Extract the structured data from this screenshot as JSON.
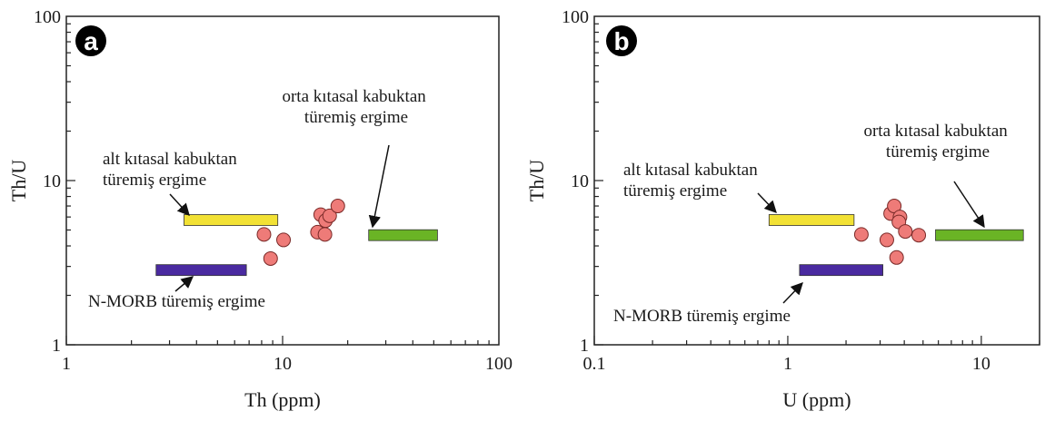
{
  "chart_data": [
    {
      "type": "scatter",
      "panel_label": "a",
      "xlabel": "Th (ppm)",
      "ylabel": "Th/U",
      "x_scale": "log",
      "y_scale": "log",
      "xlim": [
        1,
        100
      ],
      "ylim": [
        1,
        100
      ],
      "x_ticks": [
        {
          "v": 1,
          "label": "1"
        },
        {
          "v": 10,
          "label": "10"
        },
        {
          "v": 100,
          "label": "100"
        }
      ],
      "y_ticks": [
        {
          "v": 1,
          "label": "1"
        },
        {
          "v": 10,
          "label": "10"
        },
        {
          "v": 100,
          "label": "100"
        }
      ],
      "grid": false,
      "point_color": "#ee7b78",
      "points": [
        {
          "x": 8.2,
          "y": 4.7
        },
        {
          "x": 8.8,
          "y": 3.35
        },
        {
          "x": 10.1,
          "y": 4.35
        },
        {
          "x": 14.5,
          "y": 4.85
        },
        {
          "x": 15.0,
          "y": 6.2
        },
        {
          "x": 15.8,
          "y": 5.7
        },
        {
          "x": 15.7,
          "y": 4.7
        },
        {
          "x": 16.5,
          "y": 6.1
        },
        {
          "x": 18.0,
          "y": 7.0
        }
      ],
      "fields": [
        {
          "label": "alt kıtasal kabuktan türemiş ergime",
          "color": "#f2e134",
          "x0": 3.5,
          "x1": 9.5,
          "y": 5.75
        },
        {
          "label": "orta kıtasal kabuktan türemiş ergime",
          "color": "#6ab425",
          "x0": 25,
          "x1": 52,
          "y": 4.65
        },
        {
          "label": "N-MORB türemiş ergime",
          "color": "#4a2aa0",
          "x0": 2.6,
          "x1": 6.8,
          "y": 2.85
        }
      ],
      "annotations": [
        {
          "lines": [
            "orta kıtasal kabuktan",
            "türemiş ergime"
          ]
        },
        {
          "lines": [
            "alt kıtasal kabuktan",
            "türemiş ergime"
          ]
        },
        {
          "lines": [
            "N-MORB türemiş ergime"
          ]
        }
      ]
    },
    {
      "type": "scatter",
      "panel_label": "b",
      "xlabel": "U (ppm)",
      "ylabel": "Th/U",
      "x_scale": "log",
      "y_scale": "log",
      "xlim": [
        0.1,
        20
      ],
      "ylim": [
        1,
        100
      ],
      "x_ticks": [
        {
          "v": 0.1,
          "label": "0.1"
        },
        {
          "v": 1,
          "label": "1"
        },
        {
          "v": 10,
          "label": "10"
        }
      ],
      "y_ticks": [
        {
          "v": 1,
          "label": "1"
        },
        {
          "v": 10,
          "label": "10"
        },
        {
          "v": 100,
          "label": "100"
        }
      ],
      "grid": false,
      "point_color": "#ee7b78",
      "points": [
        {
          "x": 2.4,
          "y": 4.7
        },
        {
          "x": 3.25,
          "y": 4.35
        },
        {
          "x": 3.4,
          "y": 6.3
        },
        {
          "x": 3.55,
          "y": 7.0
        },
        {
          "x": 3.65,
          "y": 3.4
        },
        {
          "x": 3.8,
          "y": 6.0
        },
        {
          "x": 3.75,
          "y": 5.6
        },
        {
          "x": 4.05,
          "y": 4.9
        },
        {
          "x": 4.75,
          "y": 4.65
        }
      ],
      "fields": [
        {
          "label": "alt kıtasal kabuktan türemiş ergime",
          "color": "#f2e134",
          "x0": 0.8,
          "x1": 2.2,
          "y": 5.75
        },
        {
          "label": "orta kıtasal kabuktan türemiş ergime",
          "color": "#6ab425",
          "x0": 5.8,
          "x1": 16.5,
          "y": 4.65
        },
        {
          "label": "N-MORB türemiş ergime",
          "color": "#4a2aa0",
          "x0": 1.15,
          "x1": 3.1,
          "y": 2.85
        }
      ],
      "annotations": [
        {
          "lines": [
            "orta kıtasal kabuktan",
            "türemiş ergime"
          ]
        },
        {
          "lines": [
            "alt kıtasal kabuktan",
            "türemiş ergime"
          ]
        },
        {
          "lines": [
            "N-MORB türemiş ergime"
          ]
        }
      ]
    }
  ]
}
